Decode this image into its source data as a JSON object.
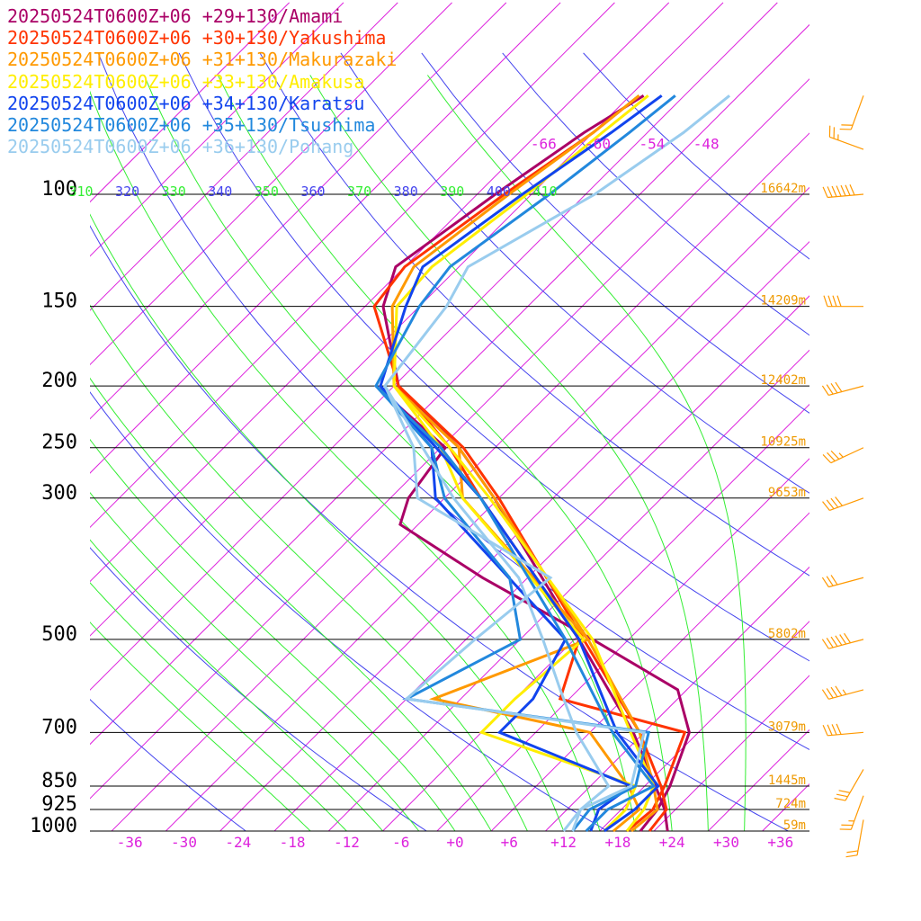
{
  "chart_data": {
    "type": "line",
    "diagram": "skew-T log-P sounding",
    "pressure_ticks": [
      {
        "p": 100,
        "label": "100"
      },
      {
        "p": 150,
        "label": "150"
      },
      {
        "p": 200,
        "label": "200"
      },
      {
        "p": 250,
        "label": "250"
      },
      {
        "p": 300,
        "label": "300"
      },
      {
        "p": 500,
        "label": "500"
      },
      {
        "p": 700,
        "label": "700"
      },
      {
        "p": 850,
        "label": "850"
      },
      {
        "p": 925,
        "label": "925"
      },
      {
        "p": 1000,
        "label": "1000"
      }
    ],
    "height_labels": [
      {
        "p": 100,
        "label": "16642m"
      },
      {
        "p": 150,
        "label": "14209m"
      },
      {
        "p": 200,
        "label": "12402m"
      },
      {
        "p": 250,
        "label": "10925m"
      },
      {
        "p": 300,
        "label": "9653m"
      },
      {
        "p": 500,
        "label": "5802m"
      },
      {
        "p": 700,
        "label": "3079m"
      },
      {
        "p": 850,
        "label": "1445m"
      },
      {
        "p": 925,
        "label": "724m"
      },
      {
        "p": 1000,
        "label": "59m"
      }
    ],
    "temperature_ticks": [
      {
        "t": -36,
        "label": "-36"
      },
      {
        "t": -30,
        "label": "-30"
      },
      {
        "t": -24,
        "label": "-24"
      },
      {
        "t": -18,
        "label": "-18"
      },
      {
        "t": -12,
        "label": "-12"
      },
      {
        "t": -6,
        "label": "-6"
      },
      {
        "t": 0,
        "label": "+0"
      },
      {
        "t": 6,
        "label": "+6"
      },
      {
        "t": 12,
        "label": "+12"
      },
      {
        "t": 18,
        "label": "+18"
      },
      {
        "t": 24,
        "label": "+24"
      },
      {
        "t": 30,
        "label": "+30"
      },
      {
        "t": 36,
        "label": "+36"
      }
    ],
    "isotherm_labels": [
      {
        "t": -66,
        "label": "-66"
      },
      {
        "t": -60,
        "label": "-60"
      },
      {
        "t": -54,
        "label": "-54"
      },
      {
        "t": -48,
        "label": "-48"
      }
    ],
    "theta_labels": [
      "310",
      "320",
      "330",
      "340",
      "350",
      "360",
      "370",
      "380",
      "390",
      "400",
      "410"
    ],
    "colors": {
      "isotherm": "#dd22dd",
      "isobar": "#000000",
      "dry_adiabat": "#4444ee",
      "moist_adiabat": "#33ee33",
      "labels": "#ee9900",
      "wind_barb": "#ff9900"
    },
    "series": [
      {
        "name": "20250524T0600Z+06 +29+130/Amami",
        "color": "#aa0066",
        "temperature": [
          [
            1000,
            23.5
          ],
          [
            925,
            20.8
          ],
          [
            850,
            17.2
          ],
          [
            700,
            8.8
          ],
          [
            500,
            -7.5
          ],
          [
            300,
            -32.5
          ],
          [
            250,
            -42
          ],
          [
            200,
            -55.5
          ],
          [
            150,
            -66
          ],
          [
            130,
            -69
          ],
          [
            100,
            -66
          ],
          [
            80,
            -63
          ],
          [
            70,
            -60.5
          ]
        ],
        "dewpoint": [
          [
            1000,
            20.5
          ],
          [
            925,
            20
          ],
          [
            850,
            18.8
          ],
          [
            700,
            15
          ],
          [
            600,
            9
          ],
          [
            500,
            -6
          ],
          [
            400,
            -25
          ],
          [
            330,
            -40
          ],
          [
            300,
            -42
          ],
          [
            250,
            -43.5
          ],
          [
            200,
            -58
          ]
        ]
      },
      {
        "name": "20250524T0600Z+06 +30+130/Yakushima",
        "color": "#ff3300",
        "temperature": [
          [
            1000,
            21.5
          ],
          [
            925,
            21
          ],
          [
            850,
            17.8
          ],
          [
            700,
            9.5
          ],
          [
            500,
            -7
          ],
          [
            300,
            -32
          ],
          [
            250,
            -41.5
          ],
          [
            200,
            -55.5
          ],
          [
            150,
            -67
          ],
          [
            130,
            -68
          ],
          [
            100,
            -65
          ],
          [
            80,
            -62
          ],
          [
            70,
            -61
          ]
        ],
        "dewpoint": [
          [
            1000,
            19
          ],
          [
            925,
            19.5
          ],
          [
            850,
            18.2
          ],
          [
            700,
            14.5
          ],
          [
            620,
            -3
          ],
          [
            500,
            -7.5
          ],
          [
            300,
            -34
          ],
          [
            250,
            -43
          ],
          [
            200,
            -55.5
          ]
        ]
      },
      {
        "name": "20250524T0600Z+06 +31+130/Makurazaki",
        "color": "#ff9900",
        "temperature": [
          [
            1000,
            19.5
          ],
          [
            925,
            20
          ],
          [
            850,
            17
          ],
          [
            700,
            9.5
          ],
          [
            500,
            -6.5
          ],
          [
            300,
            -32.5
          ],
          [
            250,
            -42
          ],
          [
            200,
            -56
          ],
          [
            150,
            -65
          ],
          [
            130,
            -67
          ],
          [
            100,
            -64.5
          ],
          [
            80,
            -62
          ],
          [
            70,
            -61
          ]
        ],
        "dewpoint": [
          [
            1000,
            17.5
          ],
          [
            925,
            18
          ],
          [
            850,
            14.2
          ],
          [
            700,
            4
          ],
          [
            620,
            -17
          ],
          [
            500,
            -6.5
          ],
          [
            300,
            -36
          ],
          [
            250,
            -42
          ],
          [
            200,
            -56
          ]
        ]
      },
      {
        "name": "20250524T0600Z+06 +33+130/Amakusa",
        "color": "#ffee00",
        "temperature": [
          [
            1000,
            19
          ],
          [
            925,
            18.5
          ],
          [
            850,
            17
          ],
          [
            700,
            8.5
          ],
          [
            500,
            -6
          ],
          [
            300,
            -33
          ],
          [
            250,
            -43
          ],
          [
            200,
            -56
          ],
          [
            150,
            -64.5
          ],
          [
            130,
            -65
          ],
          [
            100,
            -62.5
          ],
          [
            80,
            -61
          ],
          [
            70,
            -60
          ]
        ],
        "dewpoint": [
          [
            1000,
            16.5
          ],
          [
            925,
            16.5
          ],
          [
            850,
            15
          ],
          [
            700,
            -8
          ],
          [
            620,
            -8
          ],
          [
            500,
            -7
          ],
          [
            300,
            -36
          ],
          [
            250,
            -44
          ],
          [
            200,
            -56
          ]
        ]
      },
      {
        "name": "20250524T0600Z+06 +34+130/Karatsu",
        "color": "#1144ee",
        "temperature": [
          [
            1000,
            16.5
          ],
          [
            925,
            17.5
          ],
          [
            850,
            17.5
          ],
          [
            700,
            7
          ],
          [
            500,
            -7.5
          ],
          [
            300,
            -34
          ],
          [
            250,
            -44.5
          ],
          [
            200,
            -57.5
          ],
          [
            150,
            -63.5
          ],
          [
            130,
            -66
          ],
          [
            100,
            -63
          ],
          [
            80,
            -60
          ],
          [
            70,
            -58.5
          ]
        ],
        "dewpoint": [
          [
            1000,
            15
          ],
          [
            925,
            13.5
          ],
          [
            850,
            14.5
          ],
          [
            700,
            -6
          ],
          [
            620,
            -6
          ],
          [
            500,
            -9
          ],
          [
            300,
            -39
          ],
          [
            250,
            -45
          ],
          [
            200,
            -57.5
          ]
        ]
      },
      {
        "name": "20250524T0600Z+06 +35+130/Tsushima",
        "color": "#2288dd",
        "temperature": [
          [
            1000,
            14.5
          ],
          [
            925,
            14.5
          ],
          [
            850,
            17
          ],
          [
            700,
            6.5
          ],
          [
            500,
            -9
          ],
          [
            300,
            -34
          ],
          [
            250,
            -44
          ],
          [
            200,
            -58
          ],
          [
            150,
            -62
          ],
          [
            130,
            -63
          ],
          [
            100,
            -60
          ],
          [
            80,
            -58
          ],
          [
            70,
            -57
          ]
        ],
        "dewpoint": [
          [
            1000,
            13
          ],
          [
            925,
            12.5
          ],
          [
            850,
            15
          ],
          [
            700,
            10.5
          ],
          [
            620,
            -20
          ],
          [
            500,
            -14
          ],
          [
            400,
            -22
          ],
          [
            300,
            -38
          ],
          [
            250,
            -45
          ],
          [
            200,
            -58
          ]
        ]
      },
      {
        "name": "20250524T0600Z+06 +36+130/Pohang",
        "color": "#99ccee",
        "temperature": [
          [
            1000,
            13
          ],
          [
            925,
            11.5
          ],
          [
            850,
            12
          ],
          [
            700,
            2.5
          ],
          [
            600,
            -4
          ],
          [
            500,
            -11.5
          ],
          [
            400,
            -21
          ],
          [
            300,
            -37
          ],
          [
            250,
            -46
          ],
          [
            200,
            -57
          ],
          [
            150,
            -59
          ],
          [
            130,
            -61
          ],
          [
            100,
            -55
          ],
          [
            80,
            -52
          ],
          [
            70,
            -51
          ]
        ],
        "dewpoint": [
          [
            1000,
            12
          ],
          [
            925,
            11.5
          ],
          [
            850,
            14.5
          ],
          [
            700,
            10
          ],
          [
            620,
            -20
          ],
          [
            500,
            -19
          ],
          [
            400,
            -17.5
          ],
          [
            300,
            -41
          ],
          [
            250,
            -47
          ],
          [
            200,
            -57
          ]
        ]
      }
    ],
    "wind_barbs": [
      {
        "p": 70,
        "dir": 200,
        "kt": 20
      },
      {
        "p": 85,
        "dir": 290,
        "kt": 25
      },
      {
        "p": 100,
        "dir": 265,
        "kt": 70
      },
      {
        "p": 150,
        "dir": 270,
        "kt": 40
      },
      {
        "p": 200,
        "dir": 255,
        "kt": 40
      },
      {
        "p": 250,
        "dir": 245,
        "kt": 35
      },
      {
        "p": 300,
        "dir": 250,
        "kt": 40
      },
      {
        "p": 400,
        "dir": 255,
        "kt": 30
      },
      {
        "p": 500,
        "dir": 255,
        "kt": 60
      },
      {
        "p": 600,
        "dir": 255,
        "kt": 45
      },
      {
        "p": 700,
        "dir": 265,
        "kt": 40
      },
      {
        "p": 800,
        "dir": 210,
        "kt": 30
      },
      {
        "p": 880,
        "dir": 200,
        "kt": 25
      },
      {
        "p": 960,
        "dir": 190,
        "kt": 20
      }
    ]
  }
}
